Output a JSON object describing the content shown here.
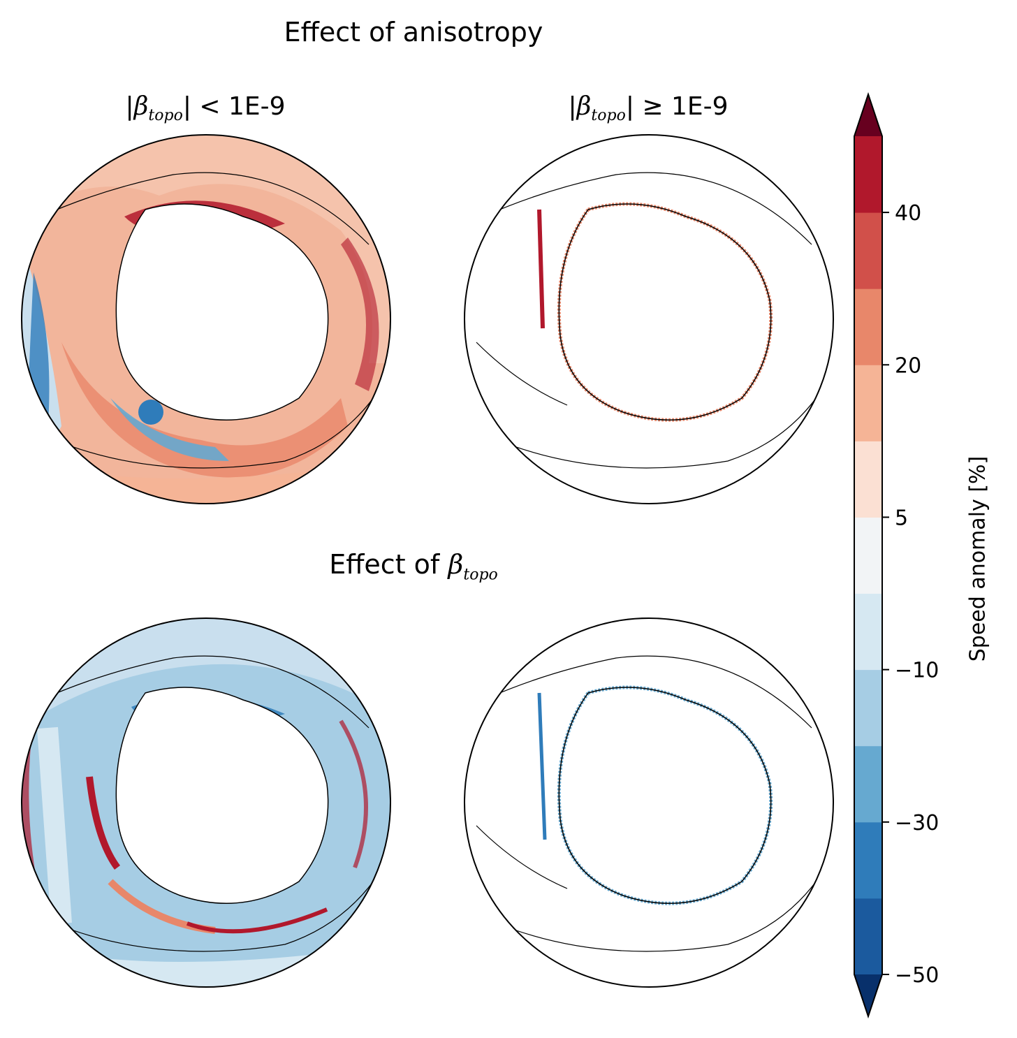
{
  "chart_data": {
    "type": "heatmap",
    "figure": "Four polar maps of the Southern Ocean showing speed anomaly",
    "rows": [
      {
        "title": "Effect of anisotropy"
      },
      {
        "title_prefix": "Effect of ",
        "title_symbol": "β",
        "title_sub": "topo"
      }
    ],
    "columns": [
      {
        "symbol": "β",
        "sub": "topo",
        "condition": "< 1E-9"
      },
      {
        "symbol": "β",
        "sub": "topo",
        "condition": "≥  1E-9"
      }
    ],
    "colorbar": {
      "label": "Speed anomaly [%]",
      "ticks": [
        "40",
        "20",
        "5",
        "−10",
        "−30",
        "−50"
      ],
      "levels": [
        -50,
        -40,
        -30,
        -20,
        -10,
        0,
        5,
        10,
        20,
        30,
        40,
        50
      ],
      "extend": "both",
      "colors": [
        "#1b5a9e",
        "#2f7cba",
        "#66a9d0",
        "#a6cde4",
        "#d6e8f2",
        "#f2f4f6",
        "#fbe0d3",
        "#f5b496",
        "#e8876a",
        "#d1504a",
        "#b1182c"
      ],
      "extend_low": "#08306b",
      "extend_high": "#67001f"
    }
  }
}
